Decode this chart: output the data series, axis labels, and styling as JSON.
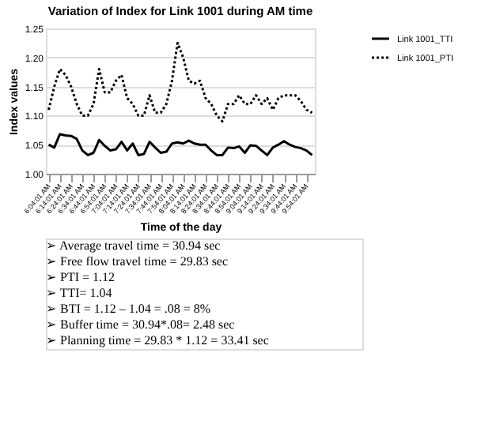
{
  "chart_data": {
    "type": "line",
    "title": "Variation of Index for Link 1001 during AM time",
    "xlabel": "Time of the day",
    "ylabel": "Index values",
    "categories": [
      "6:04:01 AM",
      null,
      "6:14:01 AM",
      null,
      "6:24:01 AM",
      null,
      "6:34:01 AM",
      null,
      "6:44:01 AM",
      null,
      "6:54:01 AM",
      null,
      "7:04:01 AM",
      null,
      "7:14:01 AM",
      null,
      "7:24:01 AM",
      null,
      "7:34:01 AM",
      null,
      "7:44:01 AM",
      null,
      "7:54:01 AM",
      null,
      "8:04:01 AM",
      null,
      "8:14:01 AM",
      null,
      "8:24:01 AM",
      null,
      "8:34:01 AM",
      null,
      "8:44:01 AM",
      null,
      "8:54:01 AM",
      null,
      "9:04:01 AM",
      null,
      "9:14:01 AM",
      null,
      "9:24:01 AM",
      null,
      "9:34:01 AM",
      null,
      "9:44:01 AM",
      null,
      "9:54:01 AM",
      null
    ],
    "series": [
      {
        "name": "Link 1001_TTI",
        "color": "#000000",
        "line_style": "solid",
        "values": [
          1.05,
          1.045,
          1.068,
          1.066,
          1.065,
          1.06,
          1.04,
          1.032,
          1.036,
          1.058,
          1.048,
          1.04,
          1.042,
          1.055,
          1.04,
          1.052,
          1.032,
          1.034,
          1.055,
          1.045,
          1.036,
          1.038,
          1.052,
          1.054,
          1.052,
          1.057,
          1.052,
          1.05,
          1.05,
          1.04,
          1.032,
          1.032,
          1.045,
          1.044,
          1.047,
          1.036,
          1.049,
          1.048,
          1.04,
          1.032,
          1.045,
          1.05,
          1.056,
          1.05,
          1.046,
          1.044,
          1.04,
          1.032
        ]
      },
      {
        "name": "Link 1001_PTI",
        "color": "#000000",
        "line_style": "dotted",
        "values": [
          1.11,
          1.15,
          1.18,
          1.17,
          1.15,
          1.12,
          1.1,
          1.1,
          1.12,
          1.18,
          1.14,
          1.14,
          1.16,
          1.17,
          1.13,
          1.12,
          1.1,
          1.1,
          1.135,
          1.105,
          1.105,
          1.12,
          1.16,
          1.225,
          1.2,
          1.16,
          1.155,
          1.16,
          1.13,
          1.12,
          1.1,
          1.09,
          1.12,
          1.12,
          1.135,
          1.12,
          1.12,
          1.135,
          1.12,
          1.13,
          1.11,
          1.13,
          1.135,
          1.135,
          1.135,
          1.125,
          1.11,
          1.105
        ]
      }
    ],
    "ylim": [
      1.0,
      1.25
    ],
    "yticks": [
      {
        "value": 1.0,
        "label": "1.00"
      },
      {
        "value": 1.05,
        "label": "1.05"
      },
      {
        "value": 1.1,
        "label": "1.10"
      },
      {
        "value": 1.15,
        "label": "1.15"
      },
      {
        "value": 1.2,
        "label": "1.20"
      },
      {
        "value": 1.25,
        "label": "1.25"
      }
    ],
    "grid": "y",
    "legend": "right",
    "marker": "none",
    "annotations": [
      "➢      Average travel time = 30.94 sec",
      "➢      Free flow travel time = 29.83 sec",
      "➢      PTI = 1.12",
      "➢      TTI= 1.04",
      "➢      BTI = 1.12 – 1.04 = .08 = 8%",
      "➢      Buffer time = 30.94*.08= 2.48 sec",
      "➢      Planning time = 29.83 * 1.12 = 33.41 sec"
    ]
  }
}
